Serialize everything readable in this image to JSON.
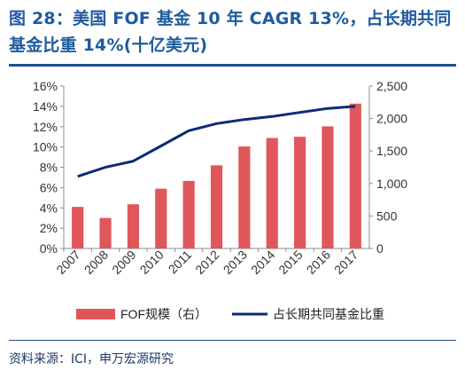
{
  "title": "图 28：美国 FOF 基金 10 年 CAGR 13%，占长期共同基金比重 14%(十亿美元)",
  "source": "资料来源：ICI，申万宏源研究",
  "colors": {
    "bar": "#e0575b",
    "line": "#0d2a7a",
    "title": "#1f5b9e"
  },
  "chart_data": {
    "type": "bar",
    "categories": [
      "2007",
      "2008",
      "2009",
      "2010",
      "2011",
      "2012",
      "2013",
      "2014",
      "2015",
      "2016",
      "2017"
    ],
    "series": [
      {
        "name": "FOF规模（右）",
        "type": "bar",
        "axis": "right",
        "values": [
          640,
          470,
          680,
          920,
          1040,
          1280,
          1570,
          1700,
          1720,
          1880,
          2230
        ]
      },
      {
        "name": "占长期共同基金比重",
        "type": "line",
        "axis": "left",
        "values": [
          7.1,
          8.0,
          8.6,
          10.1,
          11.6,
          12.3,
          12.7,
          13.0,
          13.4,
          13.8,
          14.0
        ]
      }
    ],
    "yleft": {
      "ylim": [
        0,
        16
      ],
      "ticks": [
        "0%",
        "2%",
        "4%",
        "6%",
        "8%",
        "10%",
        "12%",
        "14%",
        "16%"
      ]
    },
    "yright": {
      "ylim": [
        0,
        2500
      ],
      "ticks": [
        "0",
        "500",
        "1,000",
        "1,500",
        "2,000",
        "2,500"
      ]
    },
    "grid": false,
    "legend": "bottom"
  }
}
